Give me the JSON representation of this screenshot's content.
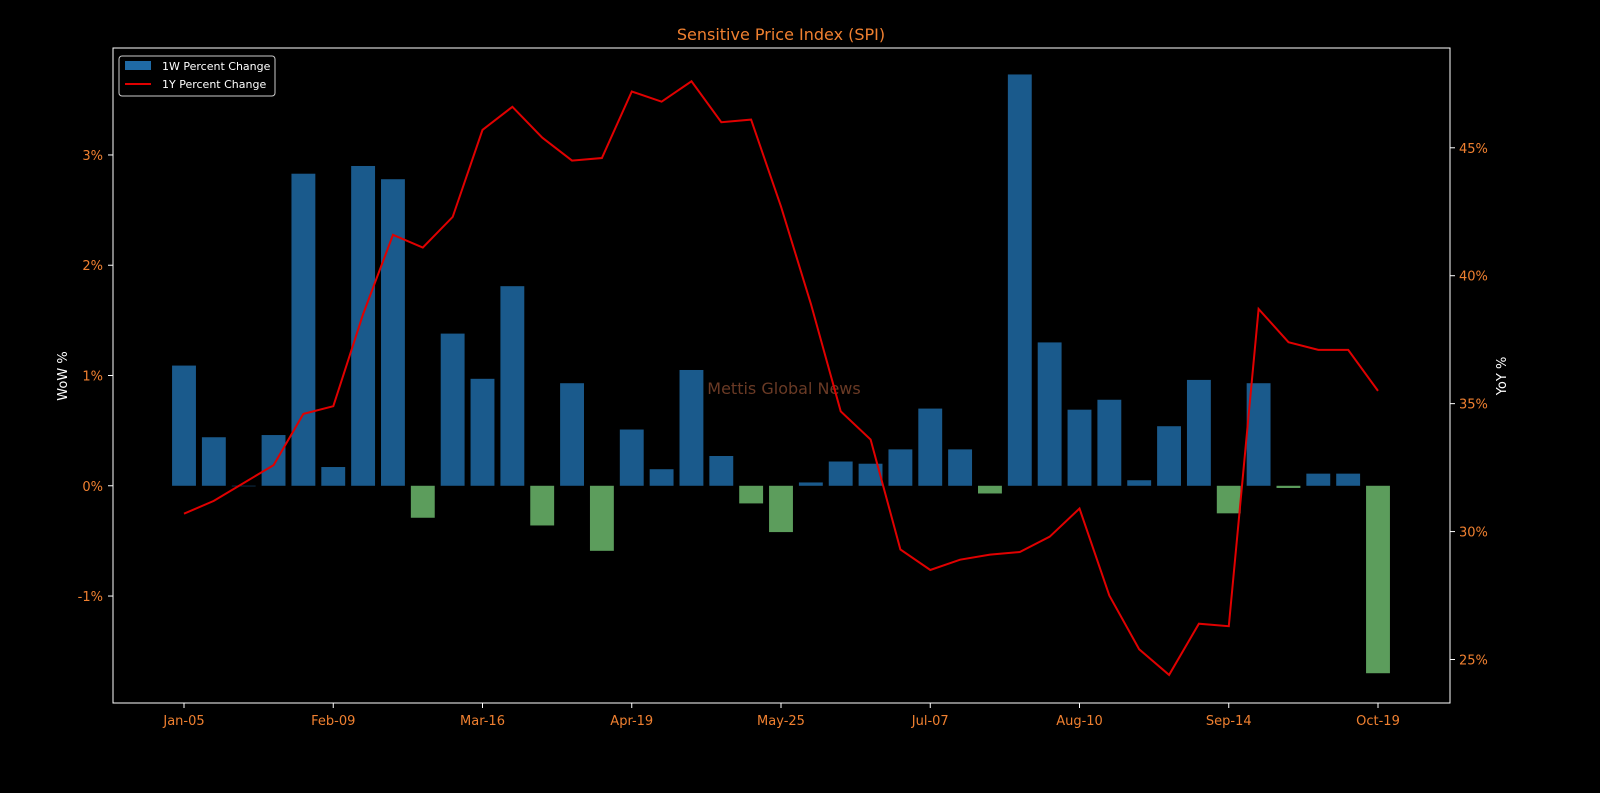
{
  "chart_data": {
    "type": "bar",
    "title": "Sensitive Price Index (SPI)",
    "watermark": "Mettis Global News",
    "ylabel": "WoW %",
    "y2label": "YoY %",
    "ylim": [
      -1.97,
      3.97
    ],
    "y2lim": [
      23.3,
      48.9
    ],
    "yticks": [
      -1,
      0,
      1,
      2,
      3
    ],
    "ytick_labels": [
      "-1%",
      "0%",
      "1%",
      "2%",
      "3%"
    ],
    "y2ticks": [
      25,
      30,
      35,
      40,
      45
    ],
    "y2tick_labels": [
      "25%",
      "30%",
      "35%",
      "40%",
      "45%"
    ],
    "xtick_labels": [
      "Jan-05",
      "Feb-09",
      "Mar-16",
      "Apr-19",
      "May-25",
      "Jul-07",
      "Aug-10",
      "Sep-14",
      "Oct-19"
    ],
    "xtick_every": 5,
    "legend": {
      "position": "top-left"
    },
    "colors": {
      "positive": "#1f6aa5",
      "negative": "#6cb86c",
      "line": "#e00000",
      "ticks": "#f08030",
      "title": "#f08030",
      "axis_label": "#ffffff",
      "watermark": "#6a3a25"
    },
    "series": [
      {
        "name": "1W Percent Change",
        "kind": "bar",
        "values": [
          1.09,
          0.44,
          0.0,
          0.46,
          2.83,
          0.17,
          2.9,
          2.78,
          -0.29,
          1.38,
          0.97,
          1.81,
          -0.36,
          0.93,
          -0.59,
          0.51,
          0.15,
          1.05,
          0.27,
          -0.16,
          -0.42,
          0.03,
          0.22,
          0.2,
          0.33,
          0.7,
          0.33,
          -0.07,
          3.73,
          1.3,
          0.69,
          0.78,
          0.05,
          0.54,
          0.96,
          -0.25,
          0.93,
          -0.02,
          0.11,
          0.11,
          -1.7
        ]
      },
      {
        "name": "1Y Percent Change",
        "kind": "line",
        "values": [
          30.7,
          31.2,
          31.9,
          32.6,
          34.6,
          34.9,
          38.5,
          41.6,
          41.1,
          42.3,
          45.7,
          46.6,
          45.4,
          44.5,
          44.6,
          47.2,
          46.8,
          47.6,
          46.0,
          46.1,
          42.7,
          38.9,
          34.7,
          33.6,
          29.3,
          28.5,
          28.9,
          29.1,
          29.2,
          29.8,
          30.9,
          27.5,
          25.4,
          24.4,
          26.4,
          26.3,
          38.7,
          37.4,
          37.1,
          37.1,
          35.5
        ]
      }
    ]
  }
}
